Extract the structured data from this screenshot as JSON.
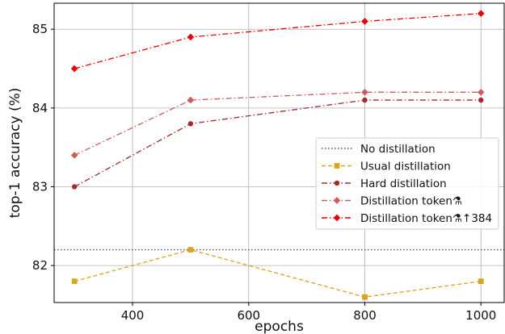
{
  "chart_data": {
    "type": "line",
    "xlabel": "epochs",
    "ylabel": "top-1 accuracy (%)",
    "xlim": [
      265,
      1040
    ],
    "ylim": [
      81.53,
      85.33
    ],
    "x_ticks": [
      400,
      600,
      800,
      1000
    ],
    "y_ticks": [
      82,
      83,
      84,
      85
    ],
    "grid": true,
    "legend_position": "center-right",
    "series": [
      {
        "name": "No distillation",
        "style": "dotted",
        "marker": "none",
        "color": "#555555",
        "x": [
          265,
          1040
        ],
        "values": [
          82.2,
          82.2
        ]
      },
      {
        "name": "Usual distillation",
        "style": "dashed",
        "marker": "square",
        "color": "#DAA520",
        "x": [
          300,
          500,
          800,
          1000
        ],
        "values": [
          81.8,
          82.2,
          81.6,
          81.8
        ]
      },
      {
        "name": "Hard distillation",
        "style": "dashdot",
        "marker": "circle",
        "color": "#A52A2A",
        "x": [
          300,
          500,
          800,
          1000
        ],
        "values": [
          83.0,
          83.8,
          84.1,
          84.1
        ]
      },
      {
        "name": "Distillation token⚗",
        "style": "dashdot",
        "marker": "diamond",
        "color": "#CD5C5C",
        "x": [
          300,
          500,
          800,
          1000
        ],
        "values": [
          83.4,
          84.1,
          84.2,
          84.2
        ]
      },
      {
        "name": "Distillation token⚗↑384",
        "style": "dashdot",
        "marker": "diamond",
        "color": "#EE0000",
        "x": [
          300,
          500,
          800,
          1000
        ],
        "values": [
          84.5,
          84.9,
          85.1,
          85.2
        ]
      }
    ]
  }
}
